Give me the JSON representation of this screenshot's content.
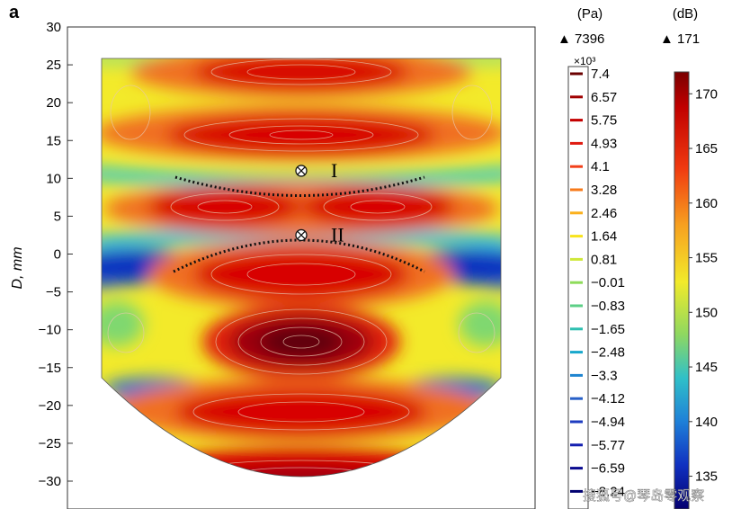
{
  "panel_label": "a",
  "chart_data": {
    "type": "heatmap",
    "title": "",
    "xlabel": "",
    "ylabel": "D, mm",
    "ylim": [
      -32,
      30
    ],
    "y_ticks": [
      30,
      25,
      20,
      15,
      10,
      5,
      0,
      -5,
      -10,
      -15,
      -20,
      -25,
      -30
    ],
    "contour_lines": true,
    "markers": [
      {
        "label": "I",
        "y": 11
      },
      {
        "label": "II",
        "y": 2.5
      }
    ],
    "lobes_high_pressure_y": [
      23,
      15,
      5,
      -3,
      -12,
      -21,
      -29
    ],
    "colorbars": [
      {
        "name": "pressure",
        "unit": "(Pa)",
        "max_marker": "▲ 7396",
        "multiplier": "×10³",
        "ticks": [
          "7.4",
          "6.57",
          "5.75",
          "4.93",
          "4.1",
          "3.28",
          "2.46",
          "1.64",
          "0.81",
          "−0.01",
          "−0.83",
          "−1.65",
          "−2.48",
          "−3.3",
          "−4.12",
          "−4.94",
          "−5.77",
          "−6.59",
          "−8.24"
        ],
        "colors": [
          "#6b0000",
          "#a00000",
          "#c40000",
          "#e01a10",
          "#f2401a",
          "#f77a1a",
          "#fbb01c",
          "#f8e41c",
          "#cfe83a",
          "#8edc5a",
          "#5ccf86",
          "#2ebfb0",
          "#18a8cc",
          "#1e84d0",
          "#2860c8",
          "#1e3cc0",
          "#141fb0",
          "#0a0a90",
          "#000070"
        ]
      },
      {
        "name": "level",
        "unit": "(dB)",
        "max_marker": "▲ 171",
        "ticks": [
          170,
          165,
          160,
          155,
          150,
          145,
          140,
          135
        ],
        "range": [
          132,
          172
        ]
      }
    ]
  },
  "watermark": "搜狐号@琴岛零观察",
  "colors": {
    "hot": "#d80000",
    "dark": "#7a0010",
    "orange": "#f07020",
    "yellow": "#f3ea2a",
    "cyan": "#38c8d0",
    "blue": "#1030c8"
  }
}
